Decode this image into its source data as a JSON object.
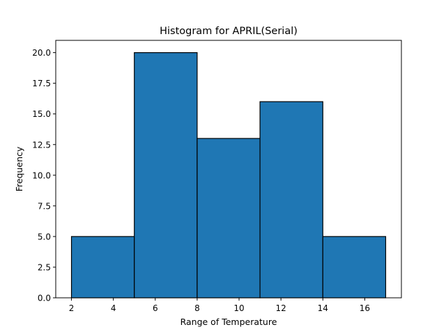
{
  "chart_data": {
    "type": "bar",
    "title": "Histogram for APRIL(Serial)",
    "xlabel": "Range of Temperature",
    "ylabel": "Frequency",
    "bins": [
      {
        "start": 2,
        "end": 5,
        "value": 5
      },
      {
        "start": 5,
        "end": 8,
        "value": 20
      },
      {
        "start": 8,
        "end": 11,
        "value": 13
      },
      {
        "start": 11,
        "end": 14,
        "value": 16
      },
      {
        "start": 14,
        "end": 17,
        "value": 5
      }
    ],
    "xlim": [
      1.25,
      17.75
    ],
    "ylim": [
      0,
      21
    ],
    "xticks": [
      2,
      4,
      6,
      8,
      10,
      12,
      14,
      16
    ],
    "xtick_labels": [
      "2",
      "4",
      "6",
      "8",
      "10",
      "12",
      "14",
      "16"
    ],
    "yticks": [
      0,
      2.5,
      5,
      7.5,
      10,
      12.5,
      15,
      17.5,
      20
    ],
    "ytick_labels": [
      "0.0",
      "2.5",
      "5.0",
      "7.5",
      "10.0",
      "12.5",
      "15.0",
      "17.5",
      "20.0"
    ],
    "bar_color": "#1f77b4",
    "edge_color": "#000000",
    "grid": false
  }
}
